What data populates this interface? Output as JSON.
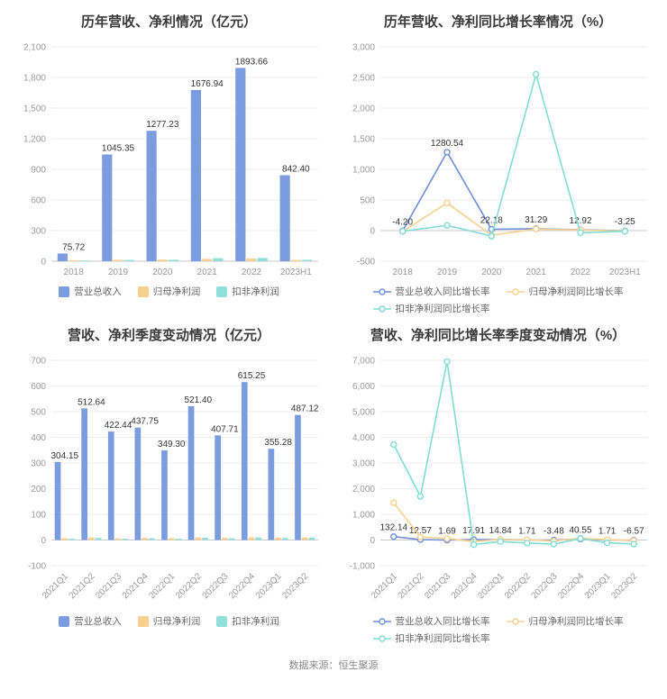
{
  "page": {
    "source_note": "数据来源：恒生聚源"
  },
  "palette": {
    "revenue_blue": "#7B9CDF",
    "net_profit_orange": "#FAD08F",
    "non_gaap_teal": "#8FE0DA",
    "grid_line": "#ededed",
    "axis_text": "#999999",
    "label_text": "#333333"
  },
  "chart_data": [
    {
      "id": "annual-amounts",
      "type": "bar",
      "title": "历年营收、净利情况（亿元）",
      "categories": [
        "2018",
        "2019",
        "2020",
        "2021",
        "2022",
        "2023H1"
      ],
      "series": [
        {
          "name": "营业总收入",
          "color": "#7B9CDF",
          "values": [
            75.72,
            1045.35,
            1277.23,
            1676.94,
            1893.66,
            842.4
          ],
          "labels": [
            "75.72",
            "1045.35",
            "1277.23",
            "1676.94",
            "1893.66",
            "842.40"
          ]
        },
        {
          "name": "归母净利润",
          "color": "#FAD08F",
          "values": [
            8,
            14,
            16,
            22,
            26,
            12
          ]
        },
        {
          "name": "扣非净利润",
          "color": "#8FE0DA",
          "values": [
            6,
            12,
            14,
            30,
            32,
            14
          ]
        }
      ],
      "ylim": [
        0,
        2100
      ],
      "ytick_step": 300,
      "grid": true,
      "legend_position": "bottom",
      "legend_rows": [
        [
          "营业总收入",
          "归母净利润",
          "扣非净利润"
        ]
      ],
      "rotate_x_labels": false
    },
    {
      "id": "annual-growth",
      "type": "line",
      "title": "历年营收、净利同比增长率情况（%）",
      "categories": [
        "2018",
        "2019",
        "2020",
        "2021",
        "2022",
        "2023H1"
      ],
      "series": [
        {
          "name": "营业总收入同比增长率",
          "color": "#6C8FD8",
          "values": [
            -4.2,
            1280.54,
            22.18,
            31.29,
            12.92,
            -3.25
          ],
          "labels": [
            "-4.20",
            "1280.54",
            "22.18",
            "31.29",
            "12.92",
            "-3.25"
          ]
        },
        {
          "name": "归母净利润同比增长率",
          "color": "#FAD08F",
          "values": [
            -15,
            452,
            -75,
            25,
            10,
            -8
          ]
        },
        {
          "name": "扣非净利润同比增长率",
          "color": "#7FDDD6",
          "values": [
            -10,
            85,
            -90,
            2552,
            -35,
            -12
          ]
        }
      ],
      "ylim": [
        -500,
        3000
      ],
      "ytick_step": 500,
      "grid": true,
      "legend_position": "bottom",
      "legend_rows": [
        [
          "营业总收入同比增长率",
          "归母净利润同比增长率"
        ],
        [
          "扣非净利润同比增长率"
        ]
      ],
      "rotate_x_labels": false
    },
    {
      "id": "quarterly-amounts",
      "type": "bar",
      "title": "营收、净利季度变动情况（亿元）",
      "categories": [
        "2021Q1",
        "2021Q2",
        "2021Q3",
        "2021Q4",
        "2022Q1",
        "2022Q2",
        "2022Q3",
        "2022Q4",
        "2023Q1",
        "2023Q2"
      ],
      "series": [
        {
          "name": "营业总收入",
          "color": "#7B9CDF",
          "values": [
            304.15,
            512.64,
            422.44,
            437.75,
            349.3,
            521.4,
            407.71,
            615.25,
            355.28,
            487.12
          ],
          "labels": [
            "304.15",
            "512.64",
            "422.44",
            "437.75",
            "349.30",
            "521.40",
            "407.71",
            "615.25",
            "355.28",
            "487.12"
          ]
        },
        {
          "name": "归母净利润",
          "color": "#FAD08F",
          "values": [
            7,
            10,
            6,
            8,
            7,
            10,
            8,
            11,
            9,
            10
          ]
        },
        {
          "name": "扣非净利润",
          "color": "#8FE0DA",
          "values": [
            5,
            8,
            5,
            7,
            5,
            9,
            7,
            10,
            8,
            9
          ]
        }
      ],
      "ylim": [
        -100,
        700
      ],
      "ytick_step": 100,
      "grid": true,
      "legend_position": "bottom",
      "legend_rows": [
        [
          "营业总收入",
          "归母净利润",
          "扣非净利润"
        ]
      ],
      "rotate_x_labels": true
    },
    {
      "id": "quarterly-growth",
      "type": "line",
      "title": "营收、净利同比增长率季度变动情况（%）",
      "categories": [
        "2021Q1",
        "2021Q2",
        "2021Q3",
        "2021Q4",
        "2022Q1",
        "2022Q2",
        "2022Q3",
        "2022Q4",
        "2023Q1",
        "2023Q2"
      ],
      "series": [
        {
          "name": "营业总收入同比增长率",
          "color": "#6C8FD8",
          "values": [
            132.14,
            12.57,
            1.69,
            17.91,
            14.84,
            1.71,
            -3.48,
            40.55,
            1.71,
            -6.57
          ],
          "labels": [
            "132.14",
            "12.57",
            "1.69",
            "17.91",
            "14.84",
            "1.71",
            "-3.48",
            "40.55",
            "1.71",
            "-6.57"
          ]
        },
        {
          "name": "归母净利润同比增长率",
          "color": "#FAD08F",
          "values": [
            1450,
            120,
            60,
            -60,
            25,
            10,
            -40,
            70,
            12,
            -25
          ]
        },
        {
          "name": "扣非净利润同比增长率",
          "color": "#7FDDD6",
          "values": [
            3720,
            1700,
            6950,
            -180,
            -60,
            -120,
            -160,
            60,
            -110,
            -160
          ]
        }
      ],
      "ylim": [
        -1000,
        7000
      ],
      "ytick_step": 1000,
      "grid": true,
      "legend_position": "bottom",
      "legend_rows": [
        [
          "营业总收入同比增长率",
          "归母净利润同比增长率"
        ],
        [
          "扣非净利润同比增长率"
        ]
      ],
      "rotate_x_labels": true
    }
  ]
}
